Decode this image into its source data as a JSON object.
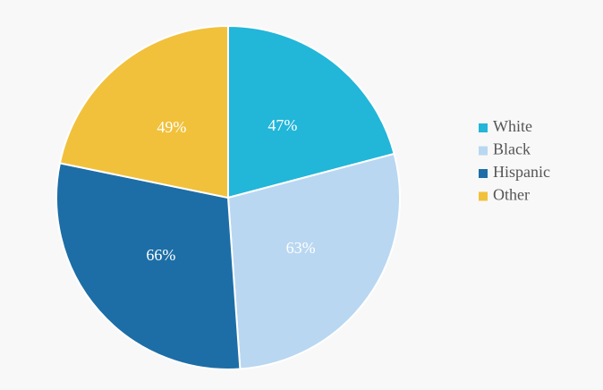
{
  "chart_data": {
    "type": "pie",
    "categories": [
      "White",
      "Black",
      "Hispanic",
      "Other"
    ],
    "values": [
      47,
      63,
      66,
      49
    ],
    "value_labels": [
      "47%",
      "63%",
      "66%",
      "49%"
    ],
    "colors": [
      "#22b6d9",
      "#b9d7f1",
      "#1d6ea6",
      "#f1c13c"
    ],
    "legend": "right"
  }
}
